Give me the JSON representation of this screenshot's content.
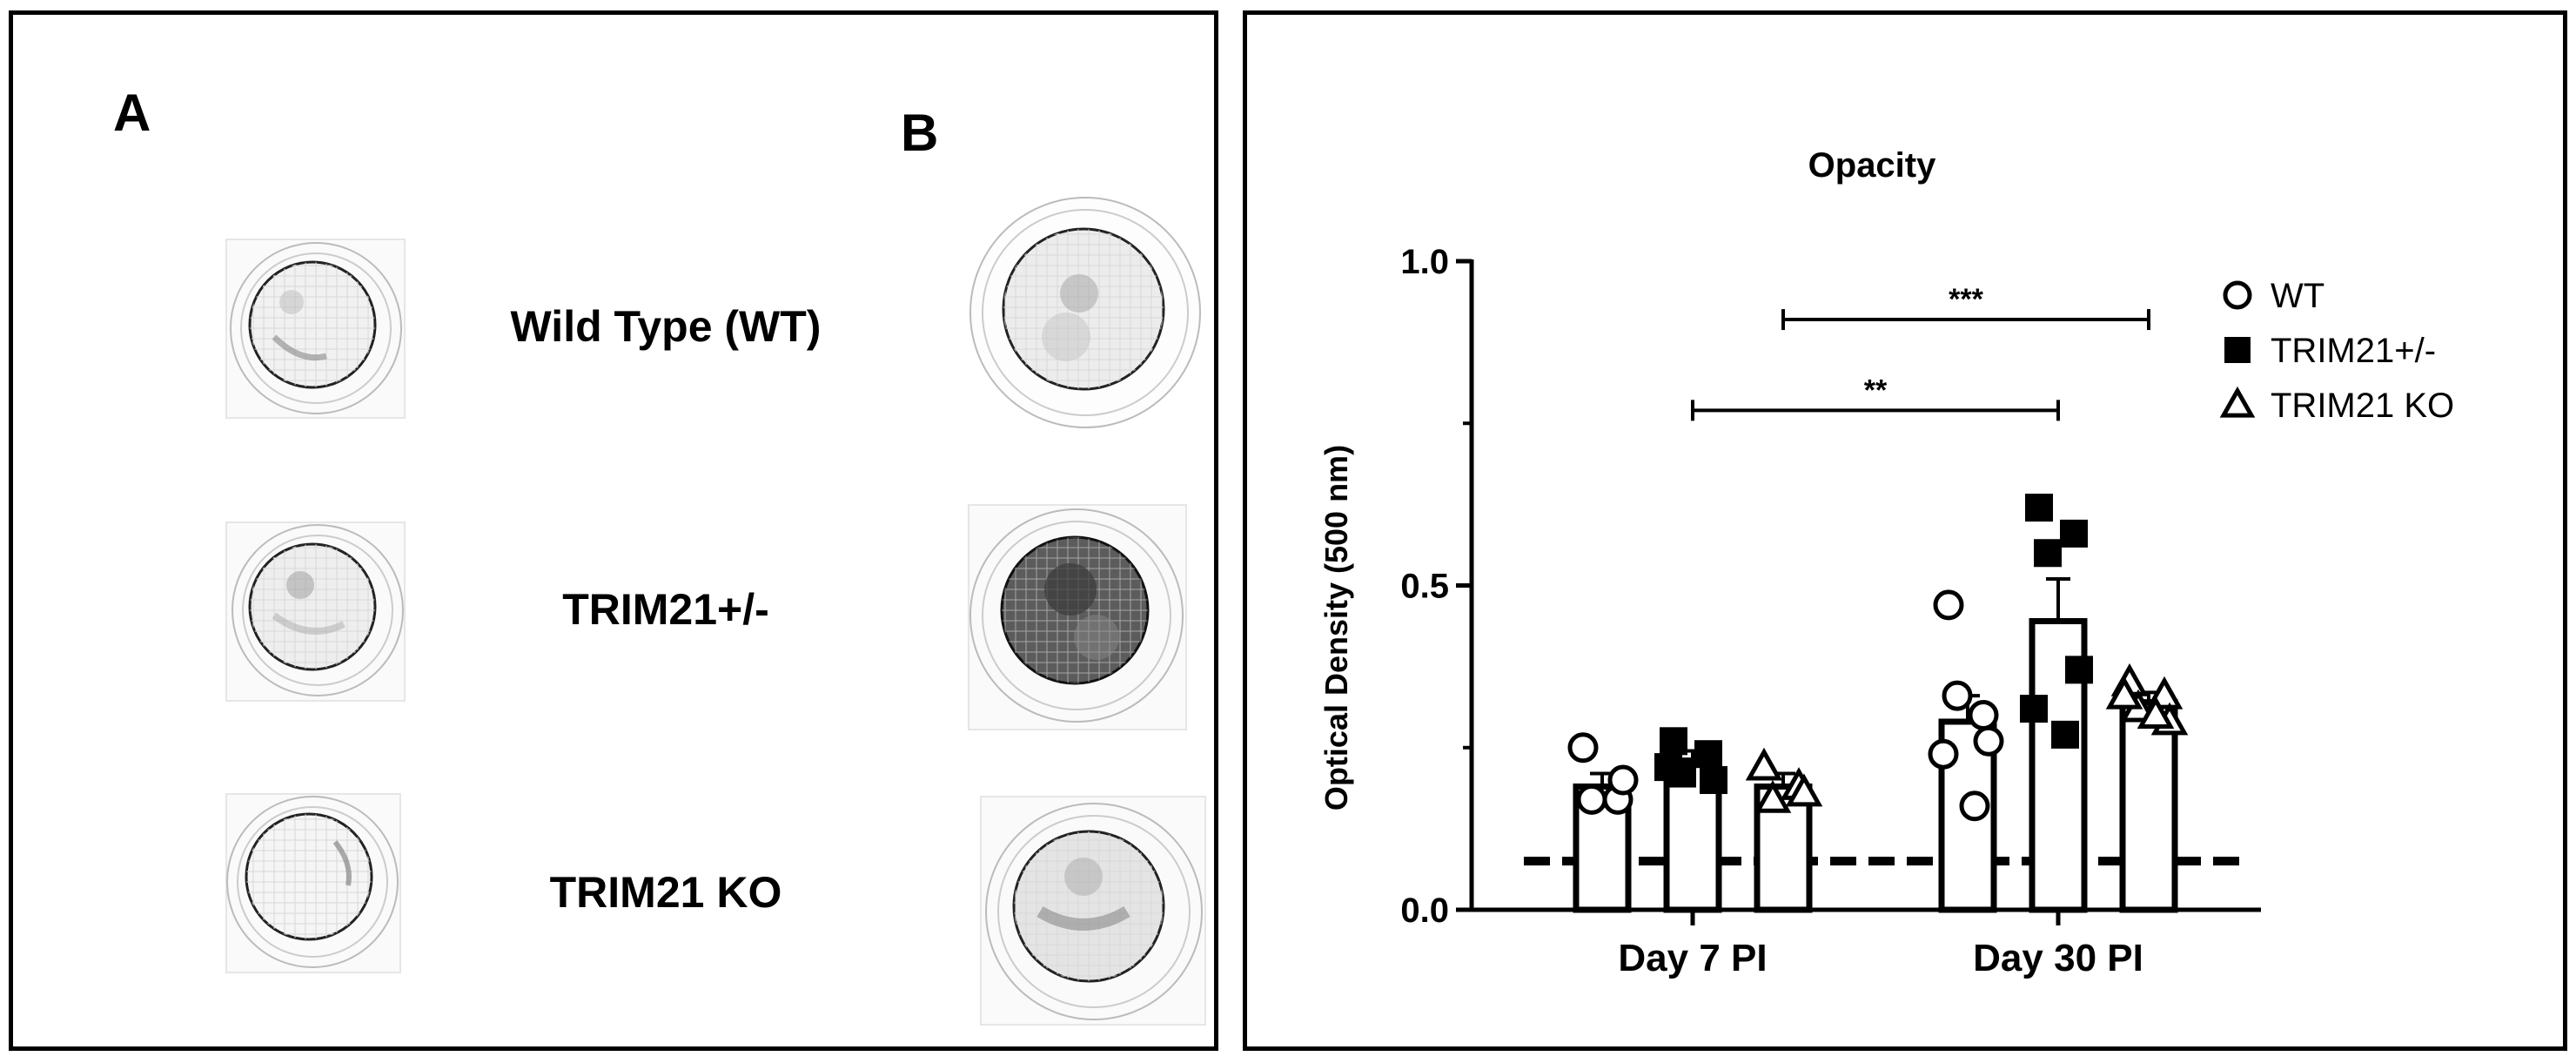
{
  "panel_a": {
    "letter_a": "A",
    "letter_b": "B",
    "labels": [
      "Wild Type (WT)",
      "TRIM21+/-",
      "TRIM21 KO"
    ]
  },
  "chart_data": {
    "type": "bar",
    "title": "Opacity",
    "ylabel": "Optical Density (500 nm)",
    "xlabel": "",
    "ylim": [
      0,
      1.0
    ],
    "yticks": [
      0.0,
      0.5,
      1.0
    ],
    "ytick_labels": [
      "0.0",
      "0.5",
      "1.0"
    ],
    "categories": [
      "Day 7 PI",
      "Day 30 PI"
    ],
    "baseline_dashed": 0.075,
    "series": [
      {
        "name": "WT",
        "marker": "circle",
        "values": [
          0.19,
          0.29
        ],
        "sem": [
          0.02,
          0.04
        ],
        "points": [
          [
            0.25,
            0.17,
            0.17,
            0.2
          ],
          [
            0.47,
            0.3,
            0.33,
            0.26,
            0.24,
            0.16
          ]
        ]
      },
      {
        "name": "TRIM21+/-",
        "marker": "square",
        "values": [
          0.23,
          0.445
        ],
        "sem": [
          0.015,
          0.065
        ],
        "points": [
          [
            0.26,
            0.24,
            0.21,
            0.2,
            0.22
          ],
          [
            0.62,
            0.58,
            0.55,
            0.37,
            0.31,
            0.27
          ]
        ]
      },
      {
        "name": "TRIM21 KO",
        "marker": "triangle",
        "values": [
          0.19,
          0.32
        ],
        "sem": [
          0.02,
          0.015
        ],
        "points": [
          [
            0.22,
            0.19,
            0.17,
            0.18
          ],
          [
            0.35,
            0.33,
            0.31,
            0.29,
            0.33,
            0.3
          ]
        ]
      }
    ],
    "significance": [
      {
        "label": "**",
        "from": "Day 7 PI / TRIM21+/-",
        "to": "Day 30 PI / TRIM21+/-",
        "y": 0.77
      },
      {
        "label": "***",
        "from": "Day 7 PI / TRIM21 KO",
        "to": "Day 30 PI / TRIM21 KO",
        "y": 0.91
      }
    ],
    "legend": {
      "position": "top-right",
      "entries": [
        "WT",
        "TRIM21+/-",
        "TRIM21 KO"
      ]
    }
  }
}
